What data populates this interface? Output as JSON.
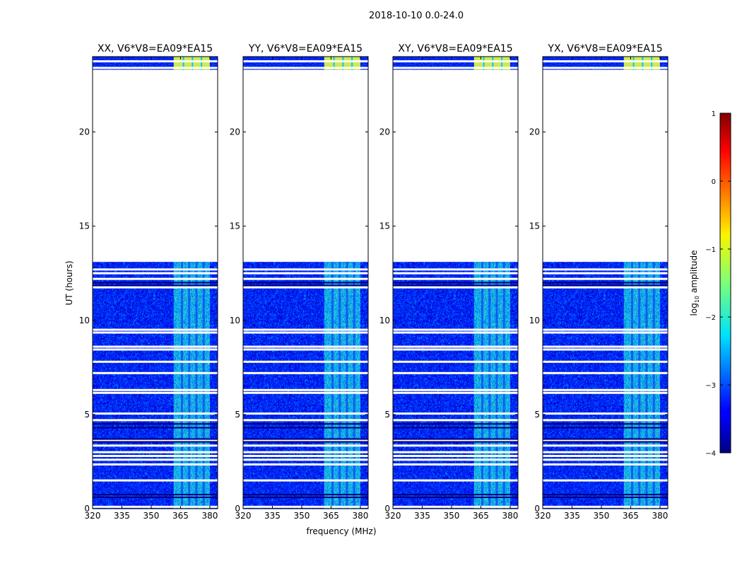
{
  "figure": {
    "suptitle": "2018-10-10 0.0-24.0",
    "xlabel": "frequency (MHz)",
    "ylabel": "UT (hours)"
  },
  "chart_data": {
    "type": "heatmap",
    "panels": [
      {
        "title": "XX, V6*V8=EA09*EA15",
        "pol": "XX"
      },
      {
        "title": "YY, V6*V8=EA09*EA15",
        "pol": "YY"
      },
      {
        "title": "XY, V6*V8=EA09*EA15",
        "pol": "XY"
      },
      {
        "title": "YX, V6*V8=EA09*EA15",
        "pol": "YX"
      }
    ],
    "x": {
      "label": "frequency (MHz)",
      "range": [
        320,
        384
      ],
      "ticks": [
        320,
        335,
        350,
        365,
        380
      ],
      "tick_labels": [
        "320",
        "335",
        "350",
        "365",
        "380"
      ]
    },
    "y": {
      "label": "UT (hours)",
      "range": [
        0,
        24
      ],
      "ticks": [
        0,
        5,
        10,
        15,
        20
      ],
      "tick_labels": [
        "0",
        "5",
        "10",
        "15",
        "20"
      ]
    },
    "data_coverage_hours": [
      [
        0,
        13.1
      ],
      [
        23.3,
        24
      ]
    ],
    "bright_band_mhz": [
      361.5,
      380
    ],
    "blank_rows_hours": [
      0.1,
      1.5,
      2.35,
      2.6,
      2.8,
      3.0,
      3.35,
      3.6,
      4.7,
      5.05,
      6.15,
      6.3,
      7.2,
      7.8,
      8.45,
      8.6,
      9.35,
      9.5,
      11.75,
      12.2,
      12.5,
      12.7,
      23.4,
      23.75
    ],
    "dark_rows_hours": [
      0.6,
      0.75,
      3.55,
      3.7,
      4.3,
      4.5,
      11.85,
      12.0
    ],
    "colorbar": {
      "label": "log10 amplitude",
      "range": [
        -4,
        1
      ],
      "ticks": [
        -4,
        -3,
        -2,
        -1,
        0,
        1
      ],
      "tick_labels": [
        "−4",
        "−3",
        "−2",
        "−1",
        "0",
        "1"
      ],
      "colormap": "jet"
    }
  }
}
